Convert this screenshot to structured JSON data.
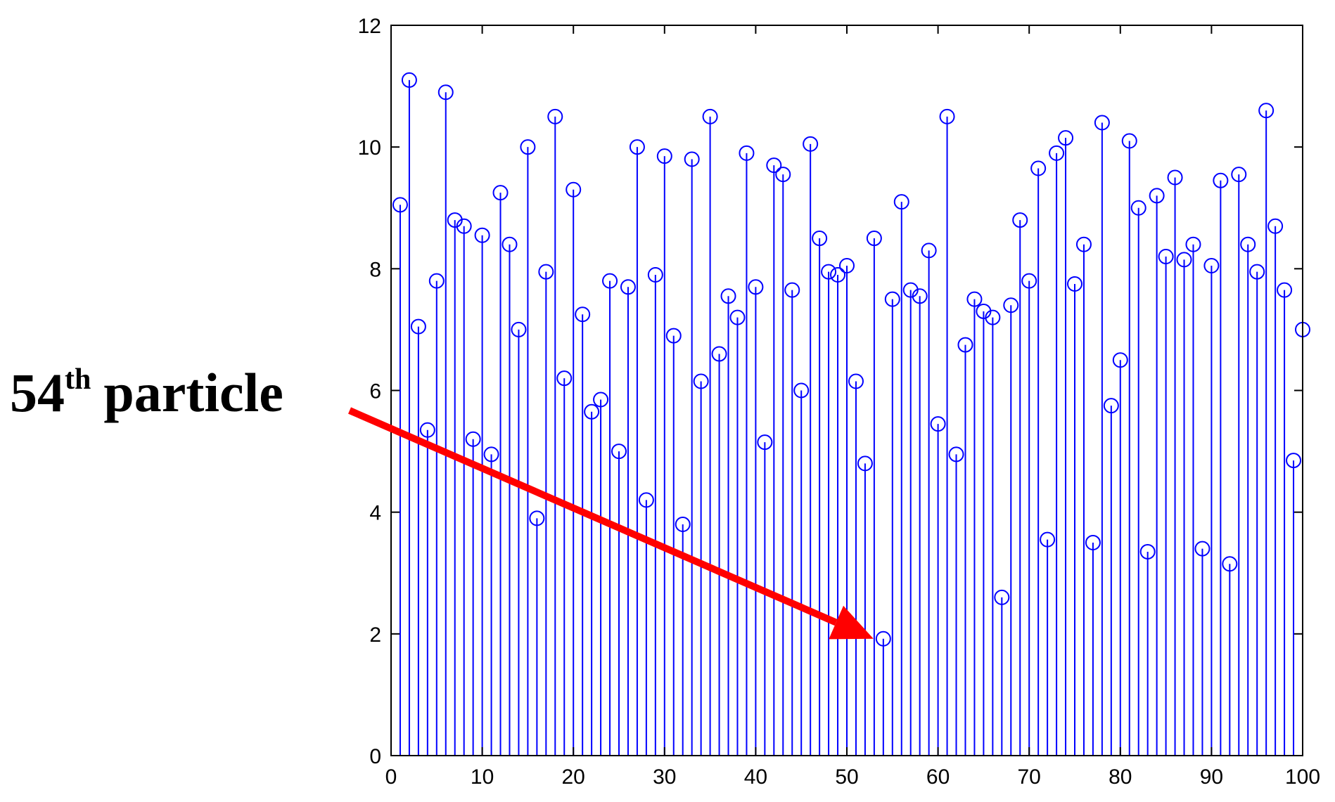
{
  "colors": {
    "stem": "#0000ff",
    "marker": "#0000ff",
    "axis": "#000000",
    "arrow": "#ff0000",
    "background": "#ffffff"
  },
  "annotation": {
    "number": "54",
    "suffix": "th",
    "word": "particle",
    "target_index": 54
  },
  "chart_data": {
    "type": "stem",
    "marker": "circle",
    "xlim": [
      0,
      100
    ],
    "ylim": [
      0,
      12
    ],
    "xticks": [
      0,
      10,
      20,
      30,
      40,
      50,
      60,
      70,
      80,
      90,
      100
    ],
    "yticks": [
      0,
      2,
      4,
      6,
      8,
      10,
      12
    ],
    "grid": false,
    "title": "",
    "xlabel": "",
    "ylabel": "",
    "x": [
      1,
      2,
      3,
      4,
      5,
      6,
      7,
      8,
      9,
      10,
      11,
      12,
      13,
      14,
      15,
      16,
      17,
      18,
      19,
      20,
      21,
      22,
      23,
      24,
      25,
      26,
      27,
      28,
      29,
      30,
      31,
      32,
      33,
      34,
      35,
      36,
      37,
      38,
      39,
      40,
      41,
      42,
      43,
      44,
      45,
      46,
      47,
      48,
      49,
      50,
      51,
      52,
      53,
      54,
      55,
      56,
      57,
      58,
      59,
      60,
      61,
      62,
      63,
      64,
      65,
      66,
      67,
      68,
      69,
      70,
      71,
      72,
      73,
      74,
      75,
      76,
      77,
      78,
      79,
      80,
      81,
      82,
      83,
      84,
      85,
      86,
      87,
      88,
      89,
      90,
      91,
      92,
      93,
      94,
      95,
      96,
      97,
      98,
      99,
      100
    ],
    "values": [
      9.05,
      11.1,
      7.05,
      5.35,
      7.8,
      10.9,
      8.8,
      8.7,
      5.2,
      8.55,
      4.95,
      9.25,
      8.4,
      7.0,
      10.0,
      3.9,
      7.95,
      10.5,
      6.2,
      9.3,
      7.25,
      5.65,
      5.85,
      7.8,
      5.0,
      7.7,
      10.0,
      4.2,
      7.9,
      9.85,
      6.9,
      3.8,
      9.8,
      6.15,
      10.5,
      6.6,
      7.55,
      7.2,
      9.9,
      7.7,
      5.15,
      9.7,
      9.55,
      7.65,
      6.0,
      10.05,
      8.5,
      7.95,
      7.9,
      8.05,
      6.15,
      4.8,
      8.5,
      1.92,
      7.5,
      9.1,
      7.65,
      7.55,
      8.3,
      5.45,
      10.5,
      4.95,
      6.75,
      7.5,
      7.3,
      7.2,
      2.6,
      7.4,
      8.8,
      7.8,
      9.65,
      3.55,
      9.9,
      10.15,
      7.75,
      8.4,
      3.5,
      10.4,
      5.75,
      6.5,
      10.1,
      9.0,
      3.35,
      9.2,
      8.2,
      9.5,
      8.15,
      8.4,
      3.4,
      8.05,
      9.45,
      3.15,
      9.55,
      8.4,
      7.95,
      10.6,
      8.7,
      7.65,
      4.85,
      7.0
    ]
  }
}
